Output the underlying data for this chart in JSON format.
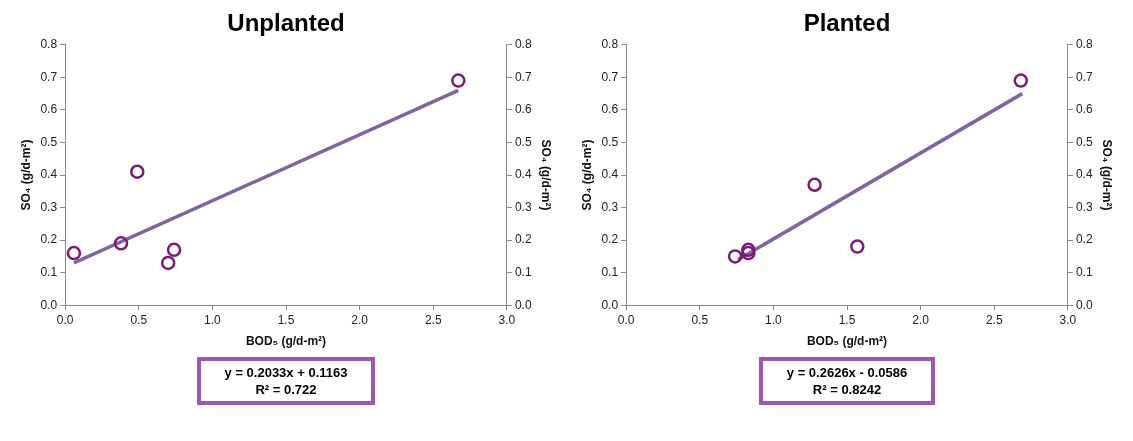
{
  "chart_data": [
    {
      "type": "scatter",
      "title": "Unplanted",
      "xlabel": "BOD₅ (g/d-m²)",
      "ylabel": "SO₄ (g/d-m²)",
      "y2label": "SO₄ (g/d-m²)",
      "xlim": [
        0,
        3
      ],
      "xticks": [
        {
          "value": 0,
          "label": "0.0"
        },
        {
          "value": 0.5,
          "label": "0.5"
        },
        {
          "value": 1,
          "label": "1.0"
        },
        {
          "value": 1.5,
          "label": "1.5"
        },
        {
          "value": 2,
          "label": "2.0"
        },
        {
          "value": 2.5,
          "label": "2.5"
        },
        {
          "value": 3,
          "label": "3.0"
        }
      ],
      "ylim": [
        0,
        0.8
      ],
      "yticks": [
        {
          "value": 0,
          "label": "0.0"
        },
        0.1,
        0.2,
        0.3,
        0.4,
        0.5,
        0.6,
        0.7,
        0.8
      ],
      "y2lim": [
        0,
        0.8
      ],
      "y2ticks": [
        {
          "value": 0,
          "label": "0.0"
        },
        0.1,
        0.2,
        0.3,
        0.4,
        0.5,
        0.6,
        0.7,
        0.8
      ],
      "grid": false,
      "legend": false,
      "series": [
        {
          "type": "scatter",
          "color": "#7a1a7a",
          "marker": "circle",
          "x": [
            0.06,
            0.38,
            0.49,
            0.7,
            0.74,
            2.67
          ],
          "values": [
            0.16,
            0.19,
            0.41,
            0.13,
            0.17,
            0.69
          ]
        },
        {
          "type": "line",
          "color": "#8064a2",
          "marker": "none",
          "x": [
            0.06,
            2.67
          ],
          "values": [
            0.13,
            0.66
          ]
        }
      ],
      "annotations": [
        "y = 0.2033x + 0.1163",
        "R² = 0.722"
      ]
    },
    {
      "type": "scatter",
      "title": "Planted",
      "xlabel": "BOD₅ (g/d-m²)",
      "ylabel": "SO₄ (g/d-m²)",
      "y2label": "SO₄ (g/d-m²)",
      "xlim": [
        0,
        3
      ],
      "xticks": [
        {
          "value": 0,
          "label": "0.0"
        },
        {
          "value": 0.5,
          "label": "0.5"
        },
        {
          "value": 1,
          "label": "1.0"
        },
        {
          "value": 1.5,
          "label": "1.5"
        },
        {
          "value": 2,
          "label": "2.0"
        },
        {
          "value": 2.5,
          "label": "2.5"
        },
        {
          "value": 3,
          "label": "3.0"
        }
      ],
      "ylim": [
        0,
        0.8
      ],
      "yticks": [
        {
          "value": 0,
          "label": "0.0"
        },
        0.1,
        0.2,
        0.3,
        0.4,
        0.5,
        0.6,
        0.7,
        0.8
      ],
      "y2lim": [
        0,
        0.8
      ],
      "y2ticks": [
        {
          "value": 0,
          "label": "0.0"
        },
        0.1,
        0.2,
        0.3,
        0.4,
        0.5,
        0.6,
        0.7,
        0.8
      ],
      "grid": false,
      "legend": false,
      "series": [
        {
          "type": "scatter",
          "color": "#7a1a7a",
          "marker": "circle",
          "x": [
            0.74,
            0.83,
            0.83,
            1.28,
            1.57,
            2.68
          ],
          "values": [
            0.15,
            0.17,
            0.16,
            0.37,
            0.18,
            0.69
          ]
        },
        {
          "type": "line",
          "color": "#8064a2",
          "marker": "none",
          "x": [
            0.76,
            2.69
          ],
          "values": [
            0.14,
            0.65
          ]
        }
      ],
      "annotations": [
        "y = 0.2626x - 0.0586",
        "R² = 0.8242"
      ]
    }
  ]
}
